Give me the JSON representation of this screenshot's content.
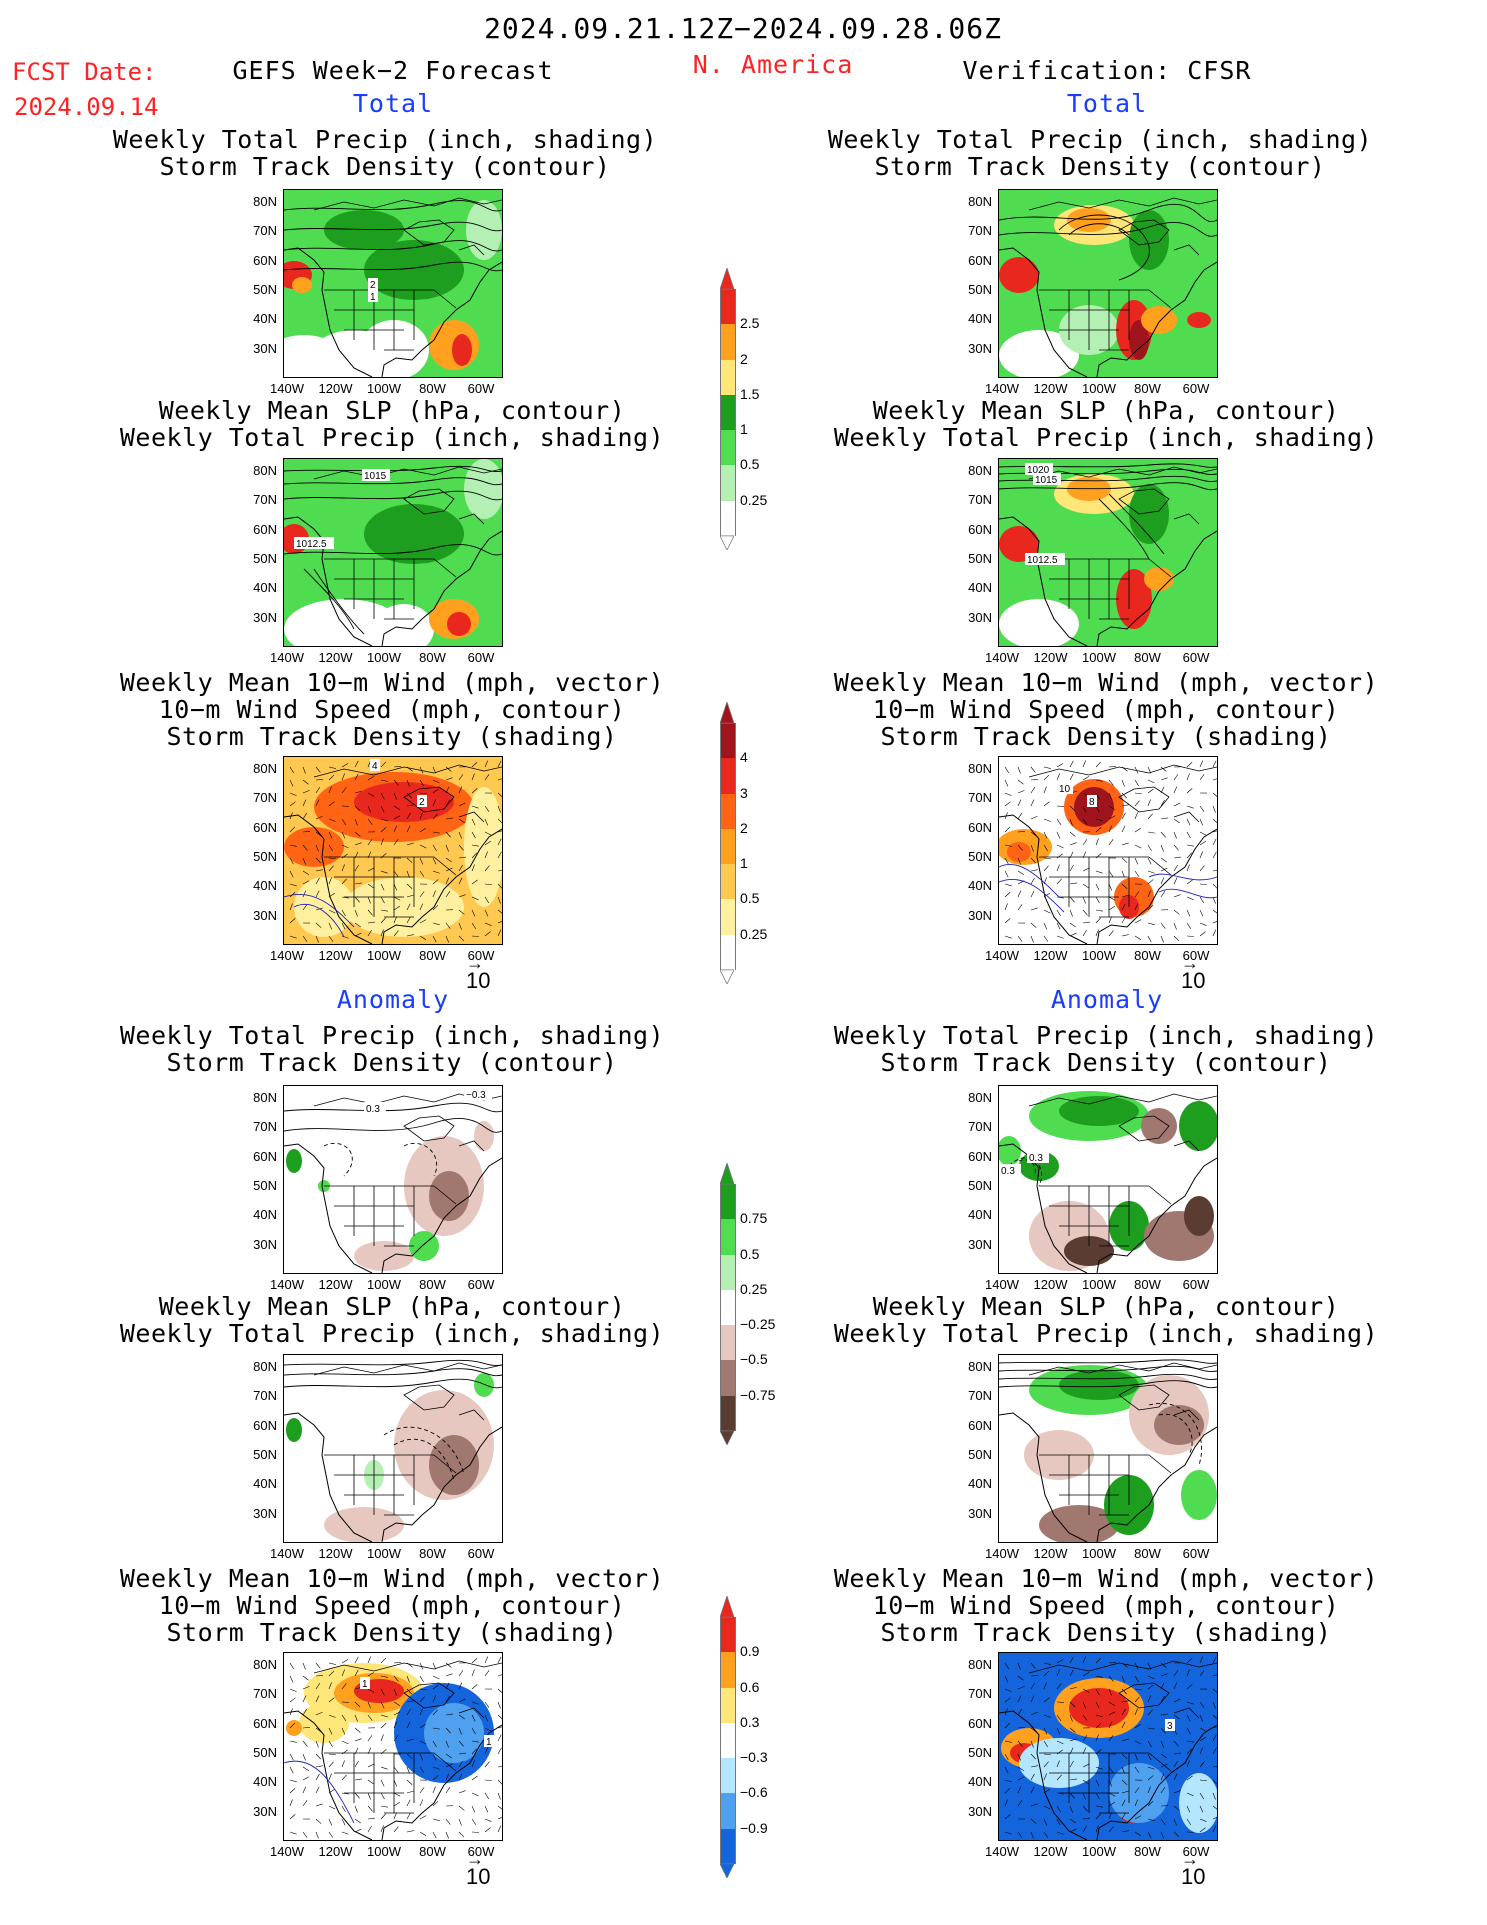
{
  "header": {
    "date_range": "2024.09.21.12Z−2024.09.28.06Z",
    "fcst_label": "FCST Date:",
    "fcst_date": "2024.09.14",
    "model_title": "GEFS Week−2 Forecast",
    "region": "N. America",
    "verification": "Verification: CFSR"
  },
  "sections": {
    "total": "Total",
    "anomaly": "Anomaly"
  },
  "panel_titles": {
    "precip_storm": "Weekly Total Precip (inch, shading)\nStorm Track Density (contour)",
    "slp_precip": "Weekly Mean SLP (hPa, contour)\nWeekly Total Precip (inch, shading)",
    "wind_storm": "Weekly Mean 10−m Wind (mph, vector)\n10−m Wind Speed (mph, contour)\nStorm Track Density (shading)"
  },
  "axes": {
    "lat_labels": [
      "80N",
      "70N",
      "60N",
      "50N",
      "40N",
      "30N"
    ],
    "lon_labels": [
      "140W",
      "120W",
      "100W",
      "80W",
      "60W"
    ]
  },
  "vector_reference": "10",
  "colorbars": {
    "precip_total": {
      "labels": [
        "2.5",
        "2",
        "1.5",
        "1",
        "0.5",
        "0.25"
      ],
      "colors": [
        "#e8281e",
        "#ffa01e",
        "#ffe678",
        "#1e9e1e",
        "#50dc50",
        "#b4f0b4",
        "#ffffff"
      ]
    },
    "storm_total": {
      "labels": [
        "4",
        "3",
        "2",
        "1",
        "0.5",
        "0.25"
      ],
      "colors": [
        "#a0141e",
        "#e8281e",
        "#ff6414",
        "#ffa01e",
        "#ffc850",
        "#fff0a0",
        "#ffffff"
      ]
    },
    "precip_anom": {
      "labels": [
        "0.75",
        "0.5",
        "0.25",
        "−0.25",
        "−0.5",
        "−0.75"
      ],
      "colors": [
        "#1e9e1e",
        "#50dc50",
        "#b4f0b4",
        "#ffffff",
        "#e6c8c0",
        "#a07870",
        "#5a3c32"
      ]
    },
    "storm_anom": {
      "labels": [
        "0.9",
        "0.6",
        "0.3",
        "−0.3",
        "−0.6",
        "−0.9"
      ],
      "colors": [
        "#e8281e",
        "#ffa01e",
        "#ffe678",
        "#ffffff",
        "#b4e6ff",
        "#50a0f0",
        "#1464dc"
      ]
    }
  },
  "contour_labels": {
    "fc_tot_precip": [
      "2",
      "1"
    ],
    "fc_tot_slp": [
      "1015",
      "1012.5"
    ],
    "fc_tot_wind": [
      "4",
      "2"
    ],
    "ob_tot_slp": [
      "1020",
      "1015",
      "1012.5"
    ],
    "ob_tot_wind": [
      "10",
      "8"
    ],
    "fc_an_precip": [
      "0.3",
      "−0.3"
    ],
    "ob_an_precip": [
      "0.3",
      "0.3"
    ],
    "fc_an_wind": [
      "1",
      "1"
    ],
    "ob_an_wind": [
      "3"
    ]
  }
}
